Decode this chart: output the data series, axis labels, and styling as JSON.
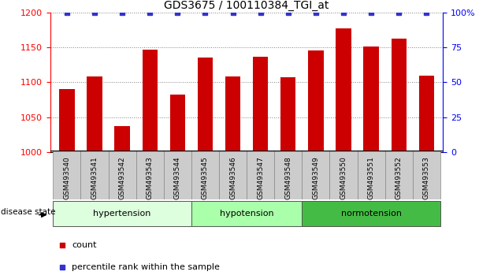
{
  "title": "GDS3675 / 100110384_TGI_at",
  "samples": [
    "GSM493540",
    "GSM493541",
    "GSM493542",
    "GSM493543",
    "GSM493544",
    "GSM493545",
    "GSM493546",
    "GSM493547",
    "GSM493548",
    "GSM493549",
    "GSM493550",
    "GSM493551",
    "GSM493552",
    "GSM493553"
  ],
  "counts": [
    1090,
    1108,
    1037,
    1147,
    1082,
    1136,
    1108,
    1137,
    1107,
    1146,
    1177,
    1151,
    1163,
    1110
  ],
  "percentiles": [
    100,
    100,
    100,
    100,
    100,
    100,
    100,
    100,
    100,
    100,
    100,
    100,
    100,
    100
  ],
  "bar_color": "#cc0000",
  "dot_color": "#3333cc",
  "ylim_left": [
    1000,
    1200
  ],
  "ylim_right": [
    0,
    100
  ],
  "yticks_left": [
    1000,
    1050,
    1100,
    1150,
    1200
  ],
  "yticks_right": [
    0,
    25,
    50,
    75,
    100
  ],
  "groups": [
    {
      "label": "hypertension",
      "start": 0,
      "end": 5,
      "color": "#ddffdd"
    },
    {
      "label": "hypotension",
      "start": 5,
      "end": 9,
      "color": "#aaffaa"
    },
    {
      "label": "normotension",
      "start": 9,
      "end": 14,
      "color": "#44bb44"
    }
  ],
  "legend_count_label": "count",
  "legend_pct_label": "percentile rank within the sample",
  "disease_state_label": "disease state",
  "title_fontsize": 10,
  "tick_fontsize": 7,
  "bar_width": 0.55
}
